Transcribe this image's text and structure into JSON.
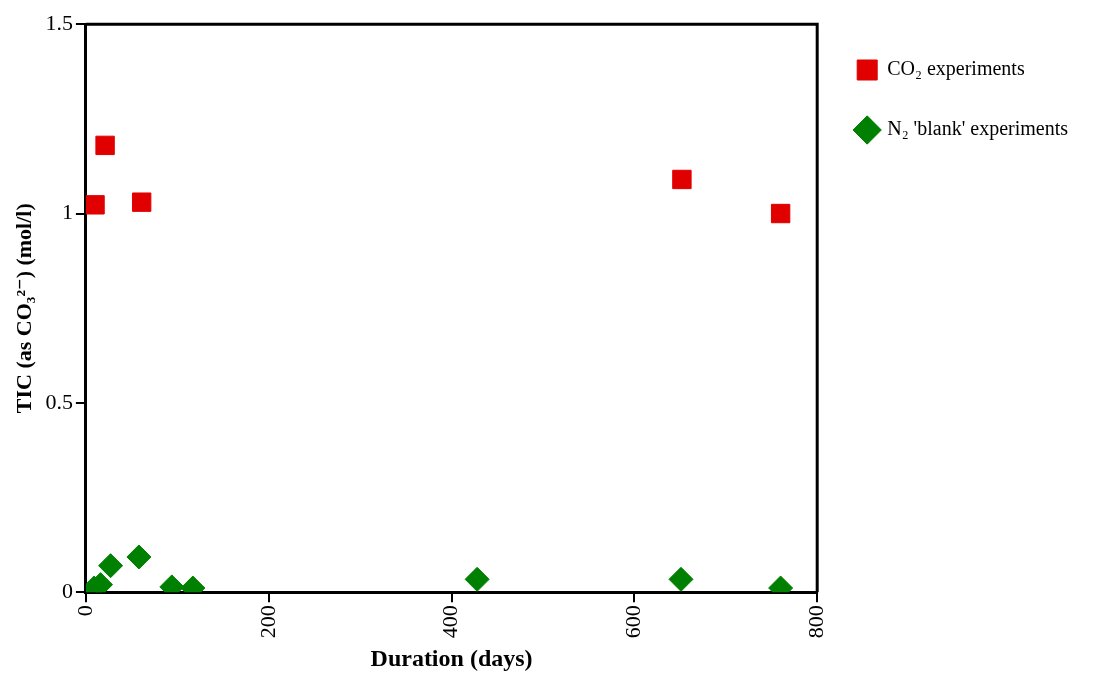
{
  "chart_data": {
    "type": "scatter",
    "xlabel": "Duration (days)",
    "ylabel": "TIC (as CO₃²⁻) (mol/l)",
    "xlim": [
      0,
      800
    ],
    "xticks": [
      0,
      200,
      400,
      600,
      800
    ],
    "ylim": [
      0,
      1.5
    ],
    "yticks": [
      0,
      0.5,
      1,
      1.5
    ],
    "grid": false,
    "legend": "right",
    "series": [
      {
        "name": "CO₂ experiments",
        "color": "#e00000",
        "marker": "square",
        "x": [
          10,
          21,
          61,
          652,
          760
        ],
        "values": [
          1.023,
          1.18,
          1.03,
          1.09,
          1.0
        ]
      },
      {
        "name": "N₂ 'blank' experiments",
        "color": "#008000",
        "marker": "diamond",
        "x": [
          9,
          16,
          27,
          58,
          94,
          117,
          428,
          651,
          760
        ],
        "values": [
          0.011,
          0.02,
          0.07,
          0.093,
          0.014,
          0.011,
          0.034,
          0.034,
          0.011
        ]
      }
    ]
  }
}
